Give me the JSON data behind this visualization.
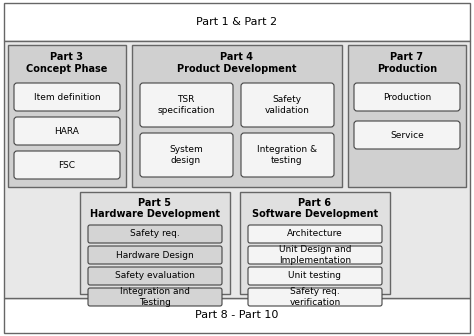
{
  "fig_width": 4.74,
  "fig_height": 3.36,
  "dpi": 100,
  "bg_color": "#ffffff",
  "ec_outer": "#666666",
  "ec_inner": "#444444",
  "fc_white": "#ffffff",
  "fc_light_grey": "#e8e8e8",
  "fc_mid_grey": "#d0d0d0",
  "fc_dark_grey": "#b8b8b8",
  "fc_box_p3": "#f4f4f4",
  "fc_box_p4": "#f4f4f4",
  "fc_box_p7": "#f4f4f4",
  "fc_box_p5": "#d4d4d4",
  "fc_box_p6": "#f4f4f4",
  "part1_label": "Part 1 & Part 2",
  "part8_label": "Part 8 - Part 10",
  "part3_title1": "Part 3",
  "part3_title2": "Concept Phase",
  "part4_title1": "Part 4",
  "part4_title2": "Product Development",
  "part7_title1": "Part 7",
  "part7_title2": "Production",
  "part5_title1": "Part 5",
  "part5_title2": "Hardware Development",
  "part6_title1": "Part 6",
  "part6_title2": "Software Development",
  "part3_items": [
    "Item definition",
    "HARA",
    "FSC"
  ],
  "part4_left_items": [
    "TSR\nspecification",
    "System\ndesign"
  ],
  "part4_right_items": [
    "Safety\nvalidation",
    "Integration &\ntesting"
  ],
  "part7_items": [
    "Production",
    "Service"
  ],
  "part5_items": [
    "Safety req.",
    "Hardware Design",
    "Safety evaluation",
    "Integration and\nTesting"
  ],
  "part6_items": [
    "Architecture",
    "Unit Design and\nImplementation",
    "Unit testing",
    "Safety req.\nverification"
  ],
  "title_fontsize": 7.0,
  "item_fontsize": 6.5,
  "lw_outer": 1.0,
  "lw_inner": 0.8
}
